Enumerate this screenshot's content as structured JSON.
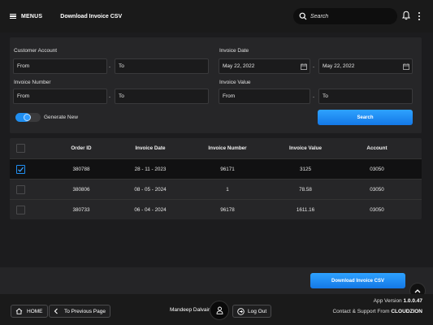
{
  "header": {
    "menu_label": "MENUS",
    "title": "Download Invoice CSV",
    "search_placeholder": "Search"
  },
  "filters": {
    "customer_account": {
      "label": "Customer Account",
      "from": "From",
      "to": "To"
    },
    "invoice_date": {
      "label": "Invoice Date",
      "from": "May 22, 2022",
      "to": "May 22, 2022"
    },
    "invoice_number": {
      "label": "Invoice Number",
      "from": "From",
      "to": "To"
    },
    "invoice_value": {
      "label": "Invoice Value",
      "from": "From",
      "to": "To"
    },
    "separator": "-",
    "generate_new": {
      "label": "Generate New",
      "checked": true
    },
    "search_button": "Search"
  },
  "table": {
    "columns": [
      "Order ID",
      "Invoice Date",
      "Invoice Number",
      "Invoice Value",
      "Account"
    ],
    "rows": [
      {
        "order_id": "380788",
        "invoice_date": "28 - 11 - 2023",
        "invoice_number": "96171",
        "invoice_value": "3125",
        "account": "03050",
        "selected": true
      },
      {
        "order_id": "380806",
        "invoice_date": "08 - 05 - 2024",
        "invoice_number": "1",
        "invoice_value": "78.58",
        "account": "03050",
        "selected": false
      },
      {
        "order_id": "380733",
        "invoice_date": "06 - 04 - 2024",
        "invoice_number": "96178",
        "invoice_value": "1611.16",
        "account": "03050",
        "selected": false
      }
    ]
  },
  "actions": {
    "download_button": "Download Invoice CSV"
  },
  "footer": {
    "home": "HOME",
    "previous": "To Previous Page",
    "user_name": "Mandeep Dalvair",
    "logout": "Log Out",
    "version_label": "App Version",
    "version": "1.0.0.47",
    "support_label": "Contact & Support From",
    "support_company": "CLOUDZION"
  },
  "colors": {
    "accent": "#1f8ef0",
    "background": "#1c1c1e",
    "panel": "#262628"
  }
}
